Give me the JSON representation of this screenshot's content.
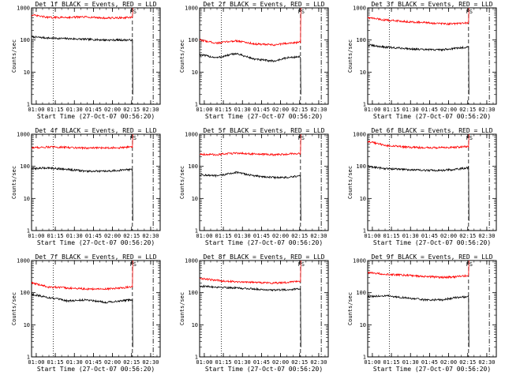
{
  "chart_data": [
    {
      "type": "line",
      "panel": 1,
      "title": "Det 1f BLACK = Events, RED = LLD",
      "xlabel": "Start Time (27-Oct-07 00:56:20)",
      "ylabel": "Counts/sec",
      "yscale": "log",
      "ylim": [
        1,
        1000
      ],
      "xlim": [
        "00:56:20",
        "02:37:30"
      ],
      "x_ticks": [
        "01:00",
        "01:15",
        "01:30",
        "01:45",
        "02:00",
        "02:15",
        "02:30"
      ],
      "y_ticks": [
        "1",
        "10",
        "100",
        "1000"
      ],
      "vlines": [
        {
          "time": "01:13:20",
          "style": "dotted"
        },
        {
          "time": "02:15:40",
          "style": "dashed"
        },
        {
          "time": "02:32:00",
          "style": "dash-dot"
        }
      ],
      "annotation": "FS",
      "annotation_time": "02:15:40",
      "series": [
        {
          "name": "Events",
          "color": "#000000",
          "x": [
            "00:56:20",
            "01:10",
            "01:25",
            "01:40",
            "01:55",
            "02:05",
            "02:15"
          ],
          "y": [
            125,
            115,
            110,
            105,
            100,
            100,
            100
          ]
        },
        {
          "name": "LLD",
          "color": "#ff0000",
          "x": [
            "00:56:20",
            "01:10",
            "01:25",
            "01:40",
            "01:55",
            "02:05",
            "02:15"
          ],
          "y": [
            600,
            500,
            510,
            520,
            480,
            490,
            500
          ]
        }
      ]
    },
    {
      "type": "line",
      "panel": 2,
      "title": "Det 2f BLACK = Events, RED = LLD",
      "xlabel": "Start Time (27-Oct-07 00:56:20)",
      "ylabel": "Counts/sec",
      "yscale": "log",
      "ylim": [
        1,
        1000
      ],
      "xlim": [
        "00:56:20",
        "02:37:30"
      ],
      "x_ticks": [
        "01:00",
        "01:15",
        "01:30",
        "01:45",
        "02:00",
        "02:15",
        "02:30"
      ],
      "y_ticks": [
        "1",
        "10",
        "100",
        "1000"
      ],
      "vlines": [
        {
          "time": "01:13:20",
          "style": "dotted"
        },
        {
          "time": "02:15:40",
          "style": "dashed"
        },
        {
          "time": "02:32:00",
          "style": "dash-dot"
        }
      ],
      "annotation": "FS",
      "annotation_time": "02:15:40",
      "series": [
        {
          "name": "Events",
          "color": "#000000",
          "x": [
            "00:56:20",
            "01:10",
            "01:25",
            "01:40",
            "01:55",
            "02:05",
            "02:15"
          ],
          "y": [
            35,
            28,
            38,
            25,
            22,
            28,
            30
          ]
        },
        {
          "name": "LLD",
          "color": "#ff0000",
          "x": [
            "00:56:20",
            "01:10",
            "01:25",
            "01:40",
            "01:55",
            "02:05",
            "02:15"
          ],
          "y": [
            100,
            80,
            95,
            75,
            70,
            80,
            85
          ]
        }
      ]
    },
    {
      "type": "line",
      "panel": 3,
      "title": "Det 3f BLACK = Events, RED = LLD",
      "xlabel": "Start Time (27-Oct-07 00:56:20)",
      "ylabel": "Counts/sec",
      "yscale": "log",
      "ylim": [
        1,
        1000
      ],
      "xlim": [
        "00:56:20",
        "02:37:30"
      ],
      "x_ticks": [
        "01:00",
        "01:15",
        "01:30",
        "01:45",
        "02:00",
        "02:15",
        "02:30"
      ],
      "y_ticks": [
        "1",
        "10",
        "100",
        "1000"
      ],
      "vlines": [
        {
          "time": "01:13:20",
          "style": "dotted"
        },
        {
          "time": "02:15:40",
          "style": "dashed"
        },
        {
          "time": "02:32:00",
          "style": "dash-dot"
        }
      ],
      "annotation": "FS",
      "annotation_time": "02:15:40",
      "series": [
        {
          "name": "Events",
          "color": "#000000",
          "x": [
            "00:56:20",
            "01:10",
            "01:25",
            "01:40",
            "01:55",
            "02:05",
            "02:15"
          ],
          "y": [
            70,
            60,
            55,
            50,
            50,
            55,
            60
          ]
        },
        {
          "name": "LLD",
          "color": "#ff0000",
          "x": [
            "00:56:20",
            "01:10",
            "01:25",
            "01:40",
            "01:55",
            "02:05",
            "02:15"
          ],
          "y": [
            500,
            420,
            380,
            350,
            320,
            320,
            340
          ]
        }
      ]
    },
    {
      "type": "line",
      "panel": 4,
      "title": "Det 4f BLACK = Events, RED = LLD",
      "xlabel": "Start Time (27-Oct-07 00:56:20)",
      "ylabel": "Counts/sec",
      "yscale": "log",
      "ylim": [
        1,
        1000
      ],
      "xlim": [
        "00:56:20",
        "02:37:30"
      ],
      "x_ticks": [
        "01:00",
        "01:15",
        "01:30",
        "01:45",
        "02:00",
        "02:15",
        "02:30"
      ],
      "y_ticks": [
        "1",
        "10",
        "100",
        "1000"
      ],
      "vlines": [
        {
          "time": "01:13:20",
          "style": "dotted"
        },
        {
          "time": "02:15:40",
          "style": "dashed"
        },
        {
          "time": "02:32:00",
          "style": "dash-dot"
        }
      ],
      "annotation": "FS",
      "annotation_time": "02:15:40",
      "series": [
        {
          "name": "Events",
          "color": "#000000",
          "x": [
            "00:56:20",
            "01:10",
            "01:25",
            "01:40",
            "01:55",
            "02:05",
            "02:15"
          ],
          "y": [
            85,
            90,
            80,
            70,
            70,
            75,
            80
          ]
        },
        {
          "name": "LLD",
          "color": "#ff0000",
          "x": [
            "00:56:20",
            "01:10",
            "01:25",
            "01:40",
            "01:55",
            "02:05",
            "02:15"
          ],
          "y": [
            380,
            400,
            390,
            370,
            380,
            380,
            400
          ]
        }
      ]
    },
    {
      "type": "line",
      "panel": 5,
      "title": "Det 5f BLACK = Events, RED = LLD",
      "xlabel": "Start Time (27-Oct-07 00:56:20)",
      "ylabel": "Counts/sec",
      "yscale": "log",
      "ylim": [
        1,
        1000
      ],
      "xlim": [
        "00:56:20",
        "02:37:30"
      ],
      "x_ticks": [
        "01:00",
        "01:15",
        "01:30",
        "01:45",
        "02:00",
        "02:15",
        "02:30"
      ],
      "y_ticks": [
        "1",
        "10",
        "100",
        "1000"
      ],
      "vlines": [
        {
          "time": "01:13:20",
          "style": "dotted"
        },
        {
          "time": "02:15:40",
          "style": "dashed"
        },
        {
          "time": "02:32:00",
          "style": "dash-dot"
        }
      ],
      "annotation": "FS",
      "annotation_time": "02:15:40",
      "series": [
        {
          "name": "Events",
          "color": "#000000",
          "x": [
            "00:56:20",
            "01:10",
            "01:25",
            "01:40",
            "01:55",
            "02:05",
            "02:15"
          ],
          "y": [
            55,
            50,
            65,
            50,
            45,
            45,
            50
          ]
        },
        {
          "name": "LLD",
          "color": "#ff0000",
          "x": [
            "00:56:20",
            "01:10",
            "01:25",
            "01:40",
            "01:55",
            "02:05",
            "02:15"
          ],
          "y": [
            240,
            230,
            260,
            240,
            230,
            240,
            250
          ]
        }
      ]
    },
    {
      "type": "line",
      "panel": 6,
      "title": "Det 6f BLACK = Events, RED = LLD",
      "xlabel": "Start Time (27-Oct-07 00:56:20)",
      "ylabel": "Counts/sec",
      "yscale": "log",
      "ylim": [
        1,
        1000
      ],
      "xlim": [
        "00:56:20",
        "02:37:30"
      ],
      "x_ticks": [
        "01:00",
        "01:15",
        "01:30",
        "01:45",
        "02:00",
        "02:15",
        "02:30"
      ],
      "y_ticks": [
        "1",
        "10",
        "100",
        "1000"
      ],
      "vlines": [
        {
          "time": "01:13:20",
          "style": "dotted"
        },
        {
          "time": "02:15:40",
          "style": "dashed"
        },
        {
          "time": "02:32:00",
          "style": "dash-dot"
        }
      ],
      "annotation": "FS",
      "annotation_time": "02:15:40",
      "series": [
        {
          "name": "Events",
          "color": "#000000",
          "x": [
            "00:56:20",
            "01:10",
            "01:25",
            "01:40",
            "01:55",
            "02:05",
            "02:15"
          ],
          "y": [
            100,
            85,
            80,
            75,
            75,
            80,
            90
          ]
        },
        {
          "name": "LLD",
          "color": "#ff0000",
          "x": [
            "00:56:20",
            "01:10",
            "01:25",
            "01:40",
            "01:55",
            "02:05",
            "02:15"
          ],
          "y": [
            600,
            450,
            400,
            380,
            380,
            390,
            420
          ]
        }
      ]
    },
    {
      "type": "line",
      "panel": 7,
      "title": "Det 7f BLACK = Events, RED = LLD",
      "xlabel": "Start Time (27-Oct-07 00:56:20)",
      "ylabel": "Counts/sec",
      "yscale": "log",
      "ylim": [
        1,
        1000
      ],
      "xlim": [
        "00:56:20",
        "02:37:30"
      ],
      "x_ticks": [
        "01:00",
        "01:15",
        "01:30",
        "01:45",
        "02:00",
        "02:15",
        "02:30"
      ],
      "y_ticks": [
        "1",
        "10",
        "100",
        "1000"
      ],
      "vlines": [
        {
          "time": "01:13:20",
          "style": "dotted"
        },
        {
          "time": "02:15:40",
          "style": "dashed"
        },
        {
          "time": "02:32:00",
          "style": "dash-dot"
        }
      ],
      "annotation": "FS",
      "annotation_time": "02:15:40",
      "series": [
        {
          "name": "Events",
          "color": "#000000",
          "x": [
            "00:56:20",
            "01:10",
            "01:25",
            "01:40",
            "01:55",
            "02:05",
            "02:15"
          ],
          "y": [
            90,
            70,
            55,
            60,
            50,
            55,
            60
          ]
        },
        {
          "name": "LLD",
          "color": "#ff0000",
          "x": [
            "00:56:20",
            "01:10",
            "01:25",
            "01:40",
            "01:55",
            "02:05",
            "02:15"
          ],
          "y": [
            200,
            150,
            140,
            130,
            130,
            140,
            150
          ]
        }
      ]
    },
    {
      "type": "line",
      "panel": 8,
      "title": "Det 8f BLACK = Events, RED = LLD",
      "xlabel": "Start Time (27-Oct-07 00:56:20)",
      "ylabel": "Counts/sec",
      "yscale": "log",
      "ylim": [
        1,
        1000
      ],
      "xlim": [
        "00:56:20",
        "02:37:30"
      ],
      "x_ticks": [
        "01:00",
        "01:15",
        "01:30",
        "01:45",
        "02:00",
        "02:15",
        "02:30"
      ],
      "y_ticks": [
        "1",
        "10",
        "100",
        "1000"
      ],
      "vlines": [
        {
          "time": "01:13:20",
          "style": "dotted"
        },
        {
          "time": "02:15:40",
          "style": "dashed"
        },
        {
          "time": "02:32:00",
          "style": "dash-dot"
        }
      ],
      "annotation": "FS",
      "annotation_time": "02:15:40",
      "series": [
        {
          "name": "Events",
          "color": "#000000",
          "x": [
            "00:56:20",
            "01:10",
            "01:25",
            "01:40",
            "01:55",
            "02:05",
            "02:15"
          ],
          "y": [
            160,
            150,
            140,
            130,
            120,
            125,
            130
          ]
        },
        {
          "name": "LLD",
          "color": "#ff0000",
          "x": [
            "00:56:20",
            "01:10",
            "01:25",
            "01:40",
            "01:55",
            "02:05",
            "02:15"
          ],
          "y": [
            280,
            240,
            220,
            210,
            200,
            210,
            230
          ]
        }
      ]
    },
    {
      "type": "line",
      "panel": 9,
      "title": "Det 9f BLACK = Events, RED = LLD",
      "xlabel": "Start Time (27-Oct-07 00:56:20)",
      "ylabel": "Counts/sec",
      "yscale": "log",
      "ylim": [
        1,
        1000
      ],
      "xlim": [
        "00:56:20",
        "02:37:30"
      ],
      "x_ticks": [
        "01:00",
        "01:15",
        "01:30",
        "01:45",
        "02:00",
        "02:15",
        "02:30"
      ],
      "y_ticks": [
        "1",
        "10",
        "100",
        "1000"
      ],
      "vlines": [
        {
          "time": "01:13:20",
          "style": "dotted"
        },
        {
          "time": "02:15:40",
          "style": "dashed"
        },
        {
          "time": "02:32:00",
          "style": "dash-dot"
        }
      ],
      "annotation": "FS",
      "annotation_time": "02:15:40",
      "series": [
        {
          "name": "Events",
          "color": "#000000",
          "x": [
            "00:56:20",
            "01:10",
            "01:25",
            "01:40",
            "01:55",
            "02:05",
            "02:15"
          ],
          "y": [
            75,
            80,
            70,
            60,
            60,
            70,
            75
          ]
        },
        {
          "name": "LLD",
          "color": "#ff0000",
          "x": [
            "00:56:20",
            "01:10",
            "01:25",
            "01:40",
            "01:55",
            "02:05",
            "02:15"
          ],
          "y": [
            420,
            380,
            350,
            320,
            300,
            310,
            340
          ]
        }
      ]
    }
  ]
}
